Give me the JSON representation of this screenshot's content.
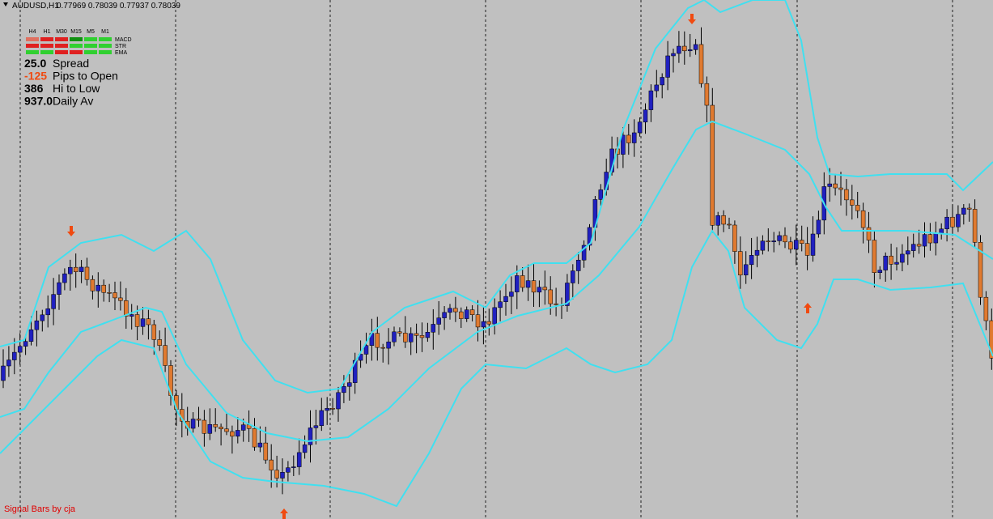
{
  "header": {
    "symbol": "AUDUSD,H1",
    "quotes": "0.77969 0.78039 0.77937 0.78039"
  },
  "panel": {
    "timeframes": [
      "H4",
      "H1",
      "M30",
      "M15",
      "M5",
      "M1"
    ],
    "indicators": [
      "MACD",
      "STR",
      "EMA"
    ]
  },
  "stats": [
    {
      "value": "25.0",
      "label": "Spread"
    },
    {
      "value": "-125",
      "label": "Pips to Open"
    },
    {
      "value": "386",
      "label": "Hi to Low"
    },
    {
      "value": "937.0",
      "label": "Daily Av"
    }
  ],
  "footer": "Signal Bars by cja"
}
